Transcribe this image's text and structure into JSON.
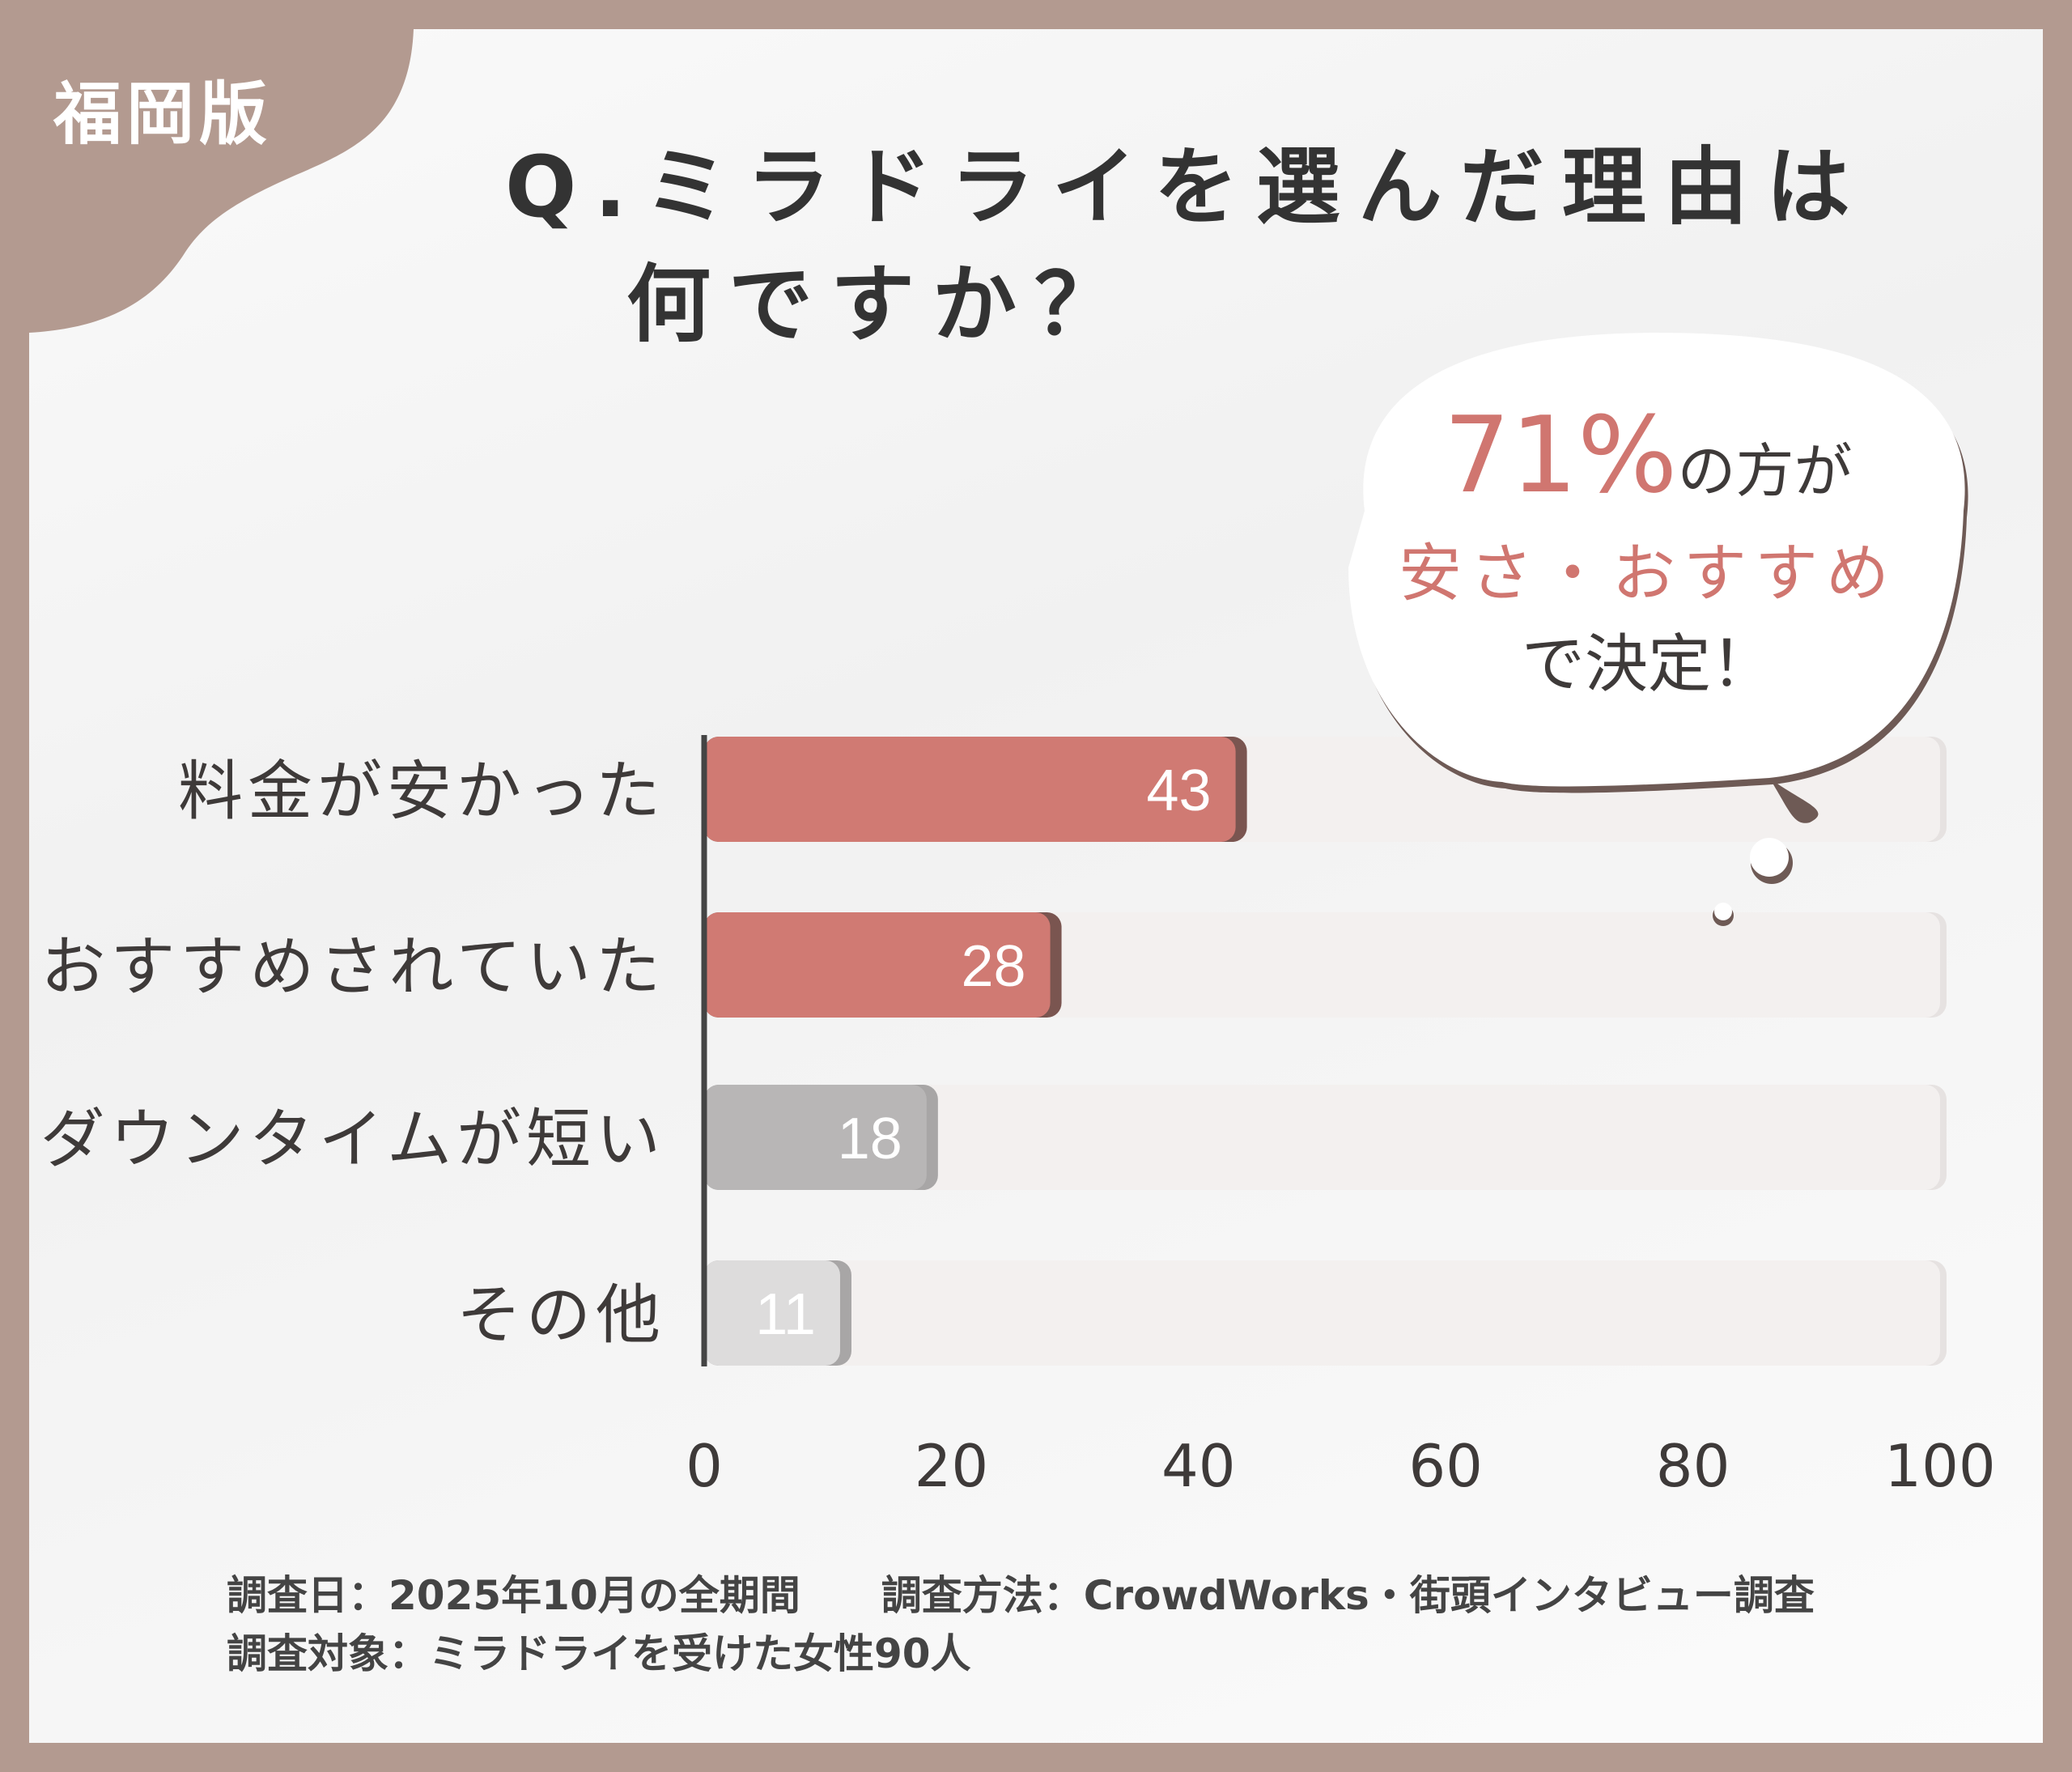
{
  "badge": "福岡版",
  "title": {
    "line1": "Q.ミラドライを選んだ理由は",
    "line2": "何ですか？"
  },
  "callout": {
    "percent": "71%",
    "suffix": "の方が",
    "highlight": "安さ・おすすめ",
    "ending": "で決定！"
  },
  "chart_data": {
    "type": "bar",
    "orientation": "horizontal",
    "categories": [
      "料金が安かった",
      "おすすめされていた",
      "ダウンタイムが短い",
      "その他"
    ],
    "values": [
      43,
      28,
      18,
      11
    ],
    "colors": [
      "#d07a73",
      "#d07a73",
      "#b8b6b6",
      "#dddcdc"
    ],
    "xlim": [
      0,
      100
    ],
    "xticks": [
      "0",
      "20",
      "40",
      "60",
      "80",
      "100"
    ],
    "title": "Q.ミラドライを選んだ理由は何ですか？"
  },
  "footer": {
    "line1": "調査日：2025年10月の全期間　　調査方法：CrowdWorks・街頭インタビュー調査",
    "line2": "調査対象：ミラドライを受けた女性90人"
  }
}
